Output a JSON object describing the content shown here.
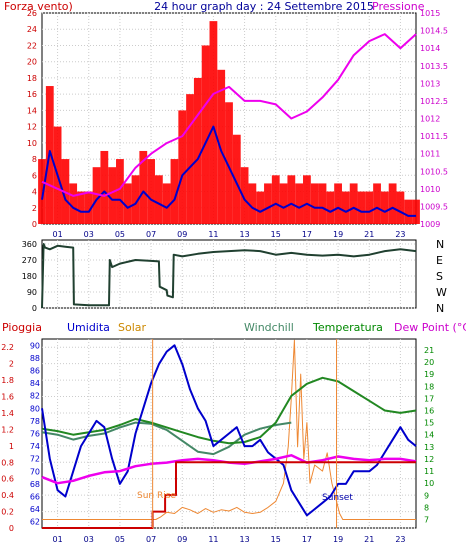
{
  "header": {
    "left_label": "Forza vento)",
    "title": "24 hour graph day : 24 Settembre 2015",
    "right_label": "Pressione"
  },
  "bottom_header": {
    "pioggia": "Pioggia",
    "umidita": "Umidita",
    "solar": "Solar",
    "windchill": "Windchill",
    "temperatura": "Temperatura",
    "dewpoint": "Dew Point (°C)"
  },
  "annotations": {
    "sunrise": "Sun Rise",
    "sunset": "Sunset"
  },
  "colors": {
    "wind": "#ff0000",
    "gust_line": "#0000cc",
    "pressure": "#ee00ee",
    "direction": "#204030",
    "humidity": "#0000cc",
    "temperature": "#228822",
    "windchill": "#448866",
    "dewpoint": "#ee00ee",
    "solar": "#ee8833",
    "rain": "#cc0000",
    "axis_red": "#cc0000",
    "axis_blue": "#0000cc",
    "axis_green": "#008800",
    "axis_magenta": "#cc00cc"
  },
  "chart_data": [
    {
      "type": "line",
      "name": "wind and pressure",
      "x_ticks": [
        "01",
        "03",
        "05",
        "07",
        "09",
        "11",
        "13",
        "15",
        "17",
        "19",
        "21",
        "23"
      ],
      "y_left_ticks": [
        "0",
        "2",
        "4",
        "6",
        "8",
        "10",
        "12",
        "14",
        "16",
        "18",
        "20",
        "22",
        "24",
        "26"
      ],
      "ylim_left": [
        0,
        26
      ],
      "y_right_ticks": [
        "1009",
        "1009.5",
        "1010",
        "1010.5",
        "1011",
        "1011.5",
        "1012",
        "1012.5",
        "1013",
        "1013.5",
        "1014",
        "1014.5",
        "1015"
      ],
      "ylim_right": [
        1009,
        1015
      ],
      "series": [
        {
          "key": "wind_avg",
          "x": [
            0,
            0.5,
            1,
            1.5,
            2,
            2.5,
            3,
            3.5,
            4,
            4.5,
            5,
            5.5,
            6,
            6.5,
            7,
            7.5,
            8,
            8.5,
            9,
            9.5,
            10,
            10.5,
            11,
            11.5,
            12,
            12.5,
            13,
            13.5,
            14,
            14.5,
            15,
            15.5,
            16,
            16.5,
            17,
            17.5,
            18,
            18.5,
            19,
            19.5,
            20,
            20.5,
            21,
            21.5,
            22,
            22.5,
            23,
            23.5,
            24
          ],
          "y": [
            3,
            9,
            6,
            3,
            2,
            1.5,
            1.5,
            3,
            4,
            3,
            3,
            2,
            2.5,
            4,
            3,
            2.5,
            2,
            3,
            6,
            7,
            8,
            10,
            12,
            9,
            7,
            5,
            3,
            2,
            1.5,
            2,
            2.5,
            2,
            2.5,
            2,
            2.5,
            2,
            2,
            1.5,
            2,
            1.5,
            2,
            1.5,
            1.5,
            2,
            1.5,
            2,
            1.5,
            1,
            1
          ]
        },
        {
          "key": "wind_gust",
          "x": [
            0,
            0.5,
            1,
            1.5,
            2,
            2.5,
            3,
            3.5,
            4,
            4.5,
            5,
            5.5,
            6,
            6.5,
            7,
            7.5,
            8,
            8.5,
            9,
            9.5,
            10,
            10.5,
            11,
            11.5,
            12,
            12.5,
            13,
            13.5,
            14,
            14.5,
            15,
            15.5,
            16,
            16.5,
            17,
            17.5,
            18,
            18.5,
            19,
            19.5,
            20,
            20.5,
            21,
            21.5,
            22,
            22.5,
            23,
            23.5,
            24
          ],
          "y": [
            8,
            17,
            12,
            8,
            5,
            4,
            4,
            7,
            9,
            7,
            8,
            5,
            6,
            9,
            8,
            6,
            5,
            8,
            14,
            16,
            18,
            22,
            25,
            19,
            15,
            11,
            7,
            5,
            4,
            5,
            6,
            5,
            6,
            5,
            6,
            5,
            5,
            4,
            5,
            4,
            5,
            4,
            4,
            5,
            4,
            5,
            4,
            3,
            3
          ]
        },
        {
          "key": "pressure",
          "x": [
            0,
            1,
            2,
            3,
            4,
            5,
            6,
            7,
            8,
            9,
            10,
            11,
            12,
            13,
            14,
            15,
            16,
            17,
            18,
            19,
            20,
            21,
            22,
            23,
            24
          ],
          "y": [
            1010.2,
            1010.0,
            1009.8,
            1009.9,
            1009.8,
            1010.0,
            1010.6,
            1011.0,
            1011.3,
            1011.5,
            1012.1,
            1012.7,
            1012.9,
            1012.5,
            1012.5,
            1012.4,
            1012.0,
            1012.2,
            1012.6,
            1013.1,
            1013.8,
            1014.2,
            1014.4,
            1014.0,
            1014.4
          ]
        }
      ]
    },
    {
      "type": "line",
      "name": "wind direction",
      "y_left_ticks": [
        "0",
        "90",
        "180",
        "270",
        "360"
      ],
      "ylim": [
        0,
        360
      ],
      "y_right_labels": [
        "N",
        "W",
        "S",
        "E",
        "N"
      ],
      "series": [
        {
          "key": "direction",
          "x": [
            0,
            0.1,
            0.2,
            0.5,
            1,
            1.5,
            2,
            2.05,
            3,
            4,
            4.3,
            4.35,
            4.5,
            5,
            6,
            7,
            7.5,
            7.55,
            8,
            8.05,
            8.4,
            8.45,
            9,
            10,
            11,
            12,
            13,
            14,
            15,
            16,
            17,
            18,
            19,
            20,
            21,
            22,
            23,
            24
          ],
          "y": [
            0,
            360,
            340,
            330,
            350,
            345,
            340,
            20,
            15,
            15,
            15,
            270,
            230,
            250,
            270,
            265,
            262,
            120,
            100,
            70,
            60,
            300,
            290,
            305,
            315,
            320,
            325,
            320,
            300,
            310,
            300,
            295,
            300,
            290,
            300,
            320,
            330,
            320
          ]
        }
      ]
    },
    {
      "type": "line",
      "name": "humidity temperature rain solar",
      "x_ticks": [
        "01",
        "03",
        "05",
        "07",
        "09",
        "11",
        "13",
        "15",
        "17",
        "19",
        "21",
        "23"
      ],
      "y_rain_ticks": [
        "0",
        "0.2",
        "0.4",
        "0.6",
        "0.8",
        "1",
        "1.2",
        "1.4",
        "1.6",
        "1.8",
        "2",
        "2.2"
      ],
      "ylim_rain": [
        0,
        2.3
      ],
      "y_hum_ticks": [
        "62",
        "64",
        "66",
        "68",
        "70",
        "72",
        "74",
        "76",
        "78",
        "80",
        "82",
        "84",
        "86",
        "88",
        "90"
      ],
      "ylim_hum": [
        61,
        91
      ],
      "y_temp_ticks": [
        "7",
        "8",
        "9",
        "10",
        "11",
        "12",
        "13",
        "14",
        "15",
        "16",
        "17",
        "18",
        "19",
        "20",
        "21"
      ],
      "ylim_temp": [
        6.3,
        21.9
      ],
      "series": [
        {
          "key": "humidity",
          "x": [
            0,
            0.5,
            1,
            1.5,
            2,
            2.5,
            3,
            3.5,
            4,
            4.5,
            5,
            5.5,
            6,
            6.5,
            7,
            7.5,
            8,
            8.5,
            9,
            9.5,
            10,
            10.5,
            11,
            11.5,
            12,
            12.5,
            13,
            13.5,
            14,
            14.5,
            15,
            15.5,
            16,
            16.5,
            17,
            17.5,
            18,
            18.5,
            19,
            19.5,
            20,
            20.5,
            21,
            21.5,
            22,
            22.5,
            23,
            23.5,
            24
          ],
          "y": [
            80,
            72,
            67,
            66,
            70,
            74,
            76,
            78,
            77,
            72,
            68,
            70,
            76,
            80,
            84,
            87,
            89,
            90,
            87,
            83,
            80,
            78,
            74,
            75,
            76,
            77,
            74,
            74,
            75,
            73,
            72,
            71,
            67,
            65,
            63,
            64,
            65,
            66,
            68,
            68,
            70,
            70,
            70,
            71,
            73,
            75,
            77,
            75,
            74
          ]
        },
        {
          "key": "temperature",
          "x": [
            0,
            1,
            2,
            3,
            4,
            5,
            6,
            7,
            8,
            9,
            10,
            11,
            12,
            13,
            14,
            15,
            16,
            17,
            18,
            19,
            20,
            21,
            22,
            23,
            24
          ],
          "y": [
            14.5,
            14.3,
            14.0,
            14.2,
            14.4,
            14.8,
            15.3,
            15.0,
            14.6,
            14.2,
            13.8,
            13.5,
            13.3,
            13.4,
            13.8,
            15.0,
            17.2,
            18.2,
            18.7,
            18.4,
            17.6,
            16.8,
            16.0,
            15.8,
            16.0
          ]
        },
        {
          "key": "windchill",
          "x": [
            0,
            1,
            2,
            3,
            4,
            5,
            6,
            7,
            8,
            9,
            10,
            11,
            12,
            13,
            14,
            15,
            16
          ],
          "y": [
            14.2,
            14.0,
            13.6,
            13.9,
            14.1,
            14.6,
            15.0,
            14.9,
            14.4,
            13.5,
            12.6,
            12.4,
            13.0,
            14.0,
            14.5,
            14.8,
            15.0
          ]
        },
        {
          "key": "dewpoint",
          "x": [
            0,
            1,
            2,
            3,
            4,
            5,
            6,
            7,
            8,
            9,
            10,
            11,
            12,
            13,
            14,
            15,
            16,
            17,
            18,
            19,
            20,
            21,
            22,
            23,
            24
          ],
          "y": [
            10.5,
            10.0,
            10.2,
            10.6,
            10.9,
            11.0,
            11.4,
            11.6,
            11.7,
            11.9,
            12.0,
            11.9,
            11.7,
            11.6,
            11.8,
            12.0,
            12.3,
            11.7,
            11.9,
            12.2,
            12.0,
            11.9,
            12.0,
            12.0,
            11.8
          ]
        },
        {
          "key": "solar",
          "x": [
            0,
            7.3,
            7.6,
            8,
            8.5,
            9,
            9.5,
            10,
            10.5,
            11,
            11.5,
            12,
            12.5,
            13,
            13.5,
            14,
            14.5,
            15,
            15.5,
            15.8,
            16,
            16.2,
            16.4,
            16.6,
            16.8,
            17,
            17.2,
            17.5,
            18,
            18.3,
            18.6,
            18.9,
            19.1,
            19.3,
            24
          ],
          "y": [
            7.0,
            7.0,
            7.2,
            7.6,
            7.5,
            8.0,
            7.8,
            7.5,
            7.9,
            7.6,
            7.8,
            7.7,
            8.0,
            7.6,
            7.5,
            7.6,
            8.0,
            8.5,
            10.0,
            13.0,
            17.0,
            21.8,
            13.0,
            19.0,
            12.0,
            15.0,
            10.0,
            11.5,
            11.0,
            12.5,
            10.0,
            8.5,
            7.5,
            7.0,
            7.0
          ]
        },
        {
          "key": "rain",
          "x": [
            0,
            7.1,
            7.1,
            7.9,
            7.9,
            8.6,
            8.6,
            24
          ],
          "y": [
            0,
            0,
            0.2,
            0.2,
            0.4,
            0.4,
            0.8,
            0.8
          ]
        }
      ]
    }
  ]
}
